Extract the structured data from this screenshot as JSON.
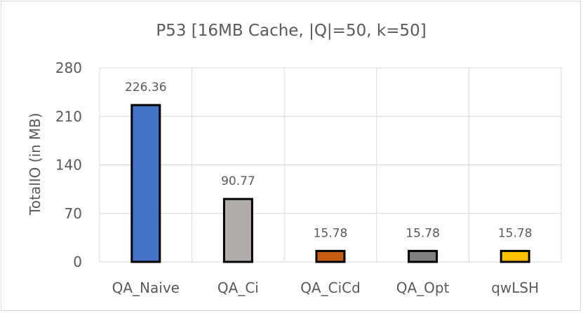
{
  "chart_data": {
    "type": "bar",
    "title": "P53 [16MB Cache, |Q|=50, k=50]",
    "ylabel": "TotalIO (in MB)",
    "xlabel": "",
    "ylim": [
      0,
      280
    ],
    "yticks": [
      0,
      70,
      140,
      210,
      280
    ],
    "categories": [
      "QA_Naive",
      "QA_Ci",
      "QA_CiCd",
      "QA_Opt",
      "qwLSH"
    ],
    "values": [
      226.36,
      90.77,
      15.78,
      15.78,
      15.78
    ],
    "data_labels": [
      "226.36",
      "90.77",
      "15.78",
      "15.78",
      "15.78"
    ],
    "colors": [
      "#4472c4",
      "#b0adab",
      "#c55a11",
      "#7f7f7f",
      "#ffc000"
    ],
    "grid": true,
    "legend": "none"
  }
}
